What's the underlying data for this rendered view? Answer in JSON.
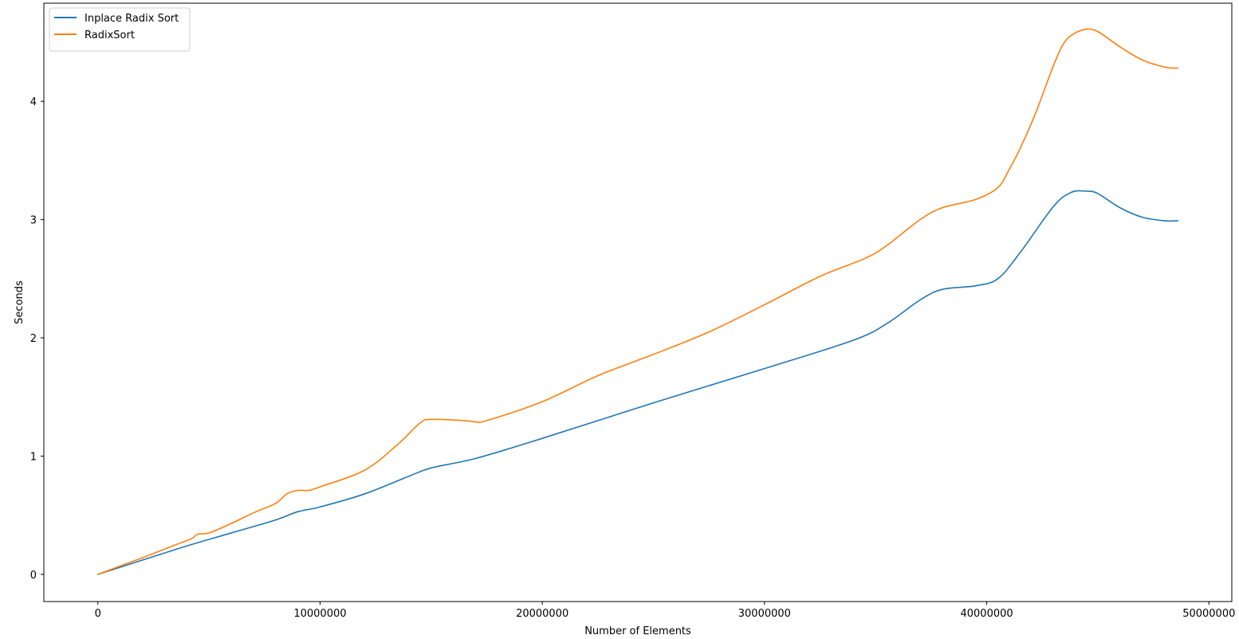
{
  "chart_data": {
    "type": "line",
    "title": "",
    "xlabel": "Number of Elements",
    "ylabel": "Seconds",
    "xlim": [
      -2430000,
      51030000
    ],
    "ylim": [
      -0.23,
      4.83
    ],
    "x_ticks": [
      0,
      10000000,
      20000000,
      30000000,
      40000000,
      50000000
    ],
    "x_tick_labels": [
      "0",
      "10000000",
      "20000000",
      "30000000",
      "40000000",
      "50000000"
    ],
    "y_ticks": [
      0,
      1,
      2,
      3,
      4
    ],
    "y_tick_labels": [
      "0",
      "1",
      "2",
      "3",
      "4"
    ],
    "grid": false,
    "legend_position": "top-left",
    "series": [
      {
        "name": "Inplace Radix Sort",
        "color": "#1f77b4",
        "points": [
          [
            0,
            0
          ],
          [
            2000000,
            0.12
          ],
          [
            4000000,
            0.24
          ],
          [
            6000000,
            0.35
          ],
          [
            8000000,
            0.46
          ],
          [
            9000000,
            0.53
          ],
          [
            10000000,
            0.57
          ],
          [
            12000000,
            0.68
          ],
          [
            14000000,
            0.83
          ],
          [
            15000000,
            0.9
          ],
          [
            17000000,
            0.98
          ],
          [
            20000000,
            1.15
          ],
          [
            25000000,
            1.45
          ],
          [
            30000000,
            1.74
          ],
          [
            34000000,
            1.98
          ],
          [
            35500000,
            2.12
          ],
          [
            37000000,
            2.32
          ],
          [
            38000000,
            2.41
          ],
          [
            39500000,
            2.44
          ],
          [
            40500000,
            2.5
          ],
          [
            41500000,
            2.72
          ],
          [
            43000000,
            3.11
          ],
          [
            43800000,
            3.23
          ],
          [
            44500000,
            3.24
          ],
          [
            45000000,
            3.22
          ],
          [
            46000000,
            3.1
          ],
          [
            47000000,
            3.02
          ],
          [
            48000000,
            2.99
          ],
          [
            48600000,
            2.99
          ]
        ]
      },
      {
        "name": "RadixSort",
        "color": "#ff7f0e",
        "points": [
          [
            0,
            0
          ],
          [
            2000000,
            0.14
          ],
          [
            3500000,
            0.25
          ],
          [
            4200000,
            0.3
          ],
          [
            4500000,
            0.34
          ],
          [
            5000000,
            0.35
          ],
          [
            6000000,
            0.43
          ],
          [
            7000000,
            0.52
          ],
          [
            8000000,
            0.6
          ],
          [
            8500000,
            0.68
          ],
          [
            9000000,
            0.71
          ],
          [
            9500000,
            0.71
          ],
          [
            10000000,
            0.74
          ],
          [
            12000000,
            0.88
          ],
          [
            13500000,
            1.1
          ],
          [
            14500000,
            1.28
          ],
          [
            15000000,
            1.31
          ],
          [
            16500000,
            1.3
          ],
          [
            17000000,
            1.29
          ],
          [
            17500000,
            1.3
          ],
          [
            20000000,
            1.46
          ],
          [
            22500000,
            1.68
          ],
          [
            25000000,
            1.86
          ],
          [
            27500000,
            2.05
          ],
          [
            30000000,
            2.28
          ],
          [
            32500000,
            2.52
          ],
          [
            34500000,
            2.67
          ],
          [
            35500000,
            2.78
          ],
          [
            37000000,
            3.0
          ],
          [
            38000000,
            3.1
          ],
          [
            39500000,
            3.17
          ],
          [
            40500000,
            3.27
          ],
          [
            41000000,
            3.42
          ],
          [
            41500000,
            3.6
          ],
          [
            42200000,
            3.9
          ],
          [
            43000000,
            4.3
          ],
          [
            43500000,
            4.5
          ],
          [
            44000000,
            4.58
          ],
          [
            44500000,
            4.61
          ],
          [
            45000000,
            4.59
          ],
          [
            46000000,
            4.46
          ],
          [
            47000000,
            4.35
          ],
          [
            48000000,
            4.29
          ],
          [
            48600000,
            4.28
          ]
        ]
      }
    ]
  }
}
